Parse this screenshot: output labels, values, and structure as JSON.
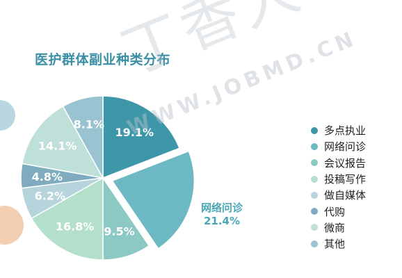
{
  "chart_data": {
    "type": "pie",
    "title": "医护群体副业种类分布",
    "categories": [
      "多点执业",
      "网络问诊",
      "会议报告",
      "投稿写作",
      "做自媒体",
      "代购",
      "微商",
      "其他"
    ],
    "values": [
      19.1,
      21.4,
      9.5,
      16.8,
      6.2,
      4.8,
      14.1,
      8.1
    ],
    "value_labels": [
      "19.1%",
      "21.4%",
      "9.5%",
      "16.8%",
      "6.2%",
      "4.8%",
      "14.1%",
      "8.1%"
    ],
    "colors": [
      "#3d97a8",
      "#6cb9c4",
      "#8dc9c4",
      "#b3dfcb",
      "#b6d4dc",
      "#7eacbe",
      "#bfe0d8",
      "#9ac3d2"
    ],
    "exploded": "网络问诊",
    "callout": {
      "name": "网络问诊",
      "value": "21.4%"
    },
    "legend_position": "right"
  },
  "watermark": {
    "text": "丁香人才",
    "url": "WWW.JOBMD.CN"
  }
}
